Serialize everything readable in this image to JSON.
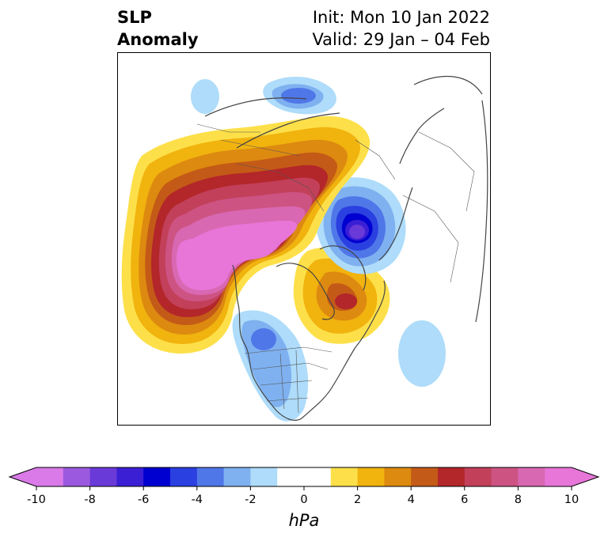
{
  "title": {
    "variable_line1": "SLP",
    "variable_line2": "Anomaly",
    "init_text": "Init: Mon 10 Jan 2022",
    "valid_text": "Valid: 29 Jan – 04 Feb"
  },
  "colorbar": {
    "unit": "hPa",
    "ticks": [
      "-10",
      "-8",
      "-6",
      "-4",
      "-2",
      "0",
      "2",
      "4",
      "6",
      "8",
      "10"
    ],
    "colors": [
      "#d97ae8",
      "#9b59e0",
      "#6a3ad8",
      "#3b1fd4",
      "#0000d0",
      "#2a40e0",
      "#5077e8",
      "#7fb1f0",
      "#aedcfa",
      "#ffffff",
      "#ffffff",
      "#fde049",
      "#f1b30e",
      "#dd8a10",
      "#c45a17",
      "#b3262a",
      "#c2405a",
      "#cd5383",
      "#d968b2",
      "#e776d8"
    ],
    "extend": "both"
  },
  "map": {
    "projection": "north polar stereographic",
    "anomalies": [
      {
        "region": "North Pacific / Alaska",
        "sign": "positive",
        "peak_hPa": 10
      },
      {
        "region": "Arctic Ocean / Siberia",
        "sign": "positive",
        "peak_hPa": 10
      },
      {
        "region": "Scandinavia / North Atlantic",
        "sign": "negative",
        "peak_hPa": -8
      },
      {
        "region": "Greenland",
        "sign": "positive",
        "peak_hPa": 6
      },
      {
        "region": "Western North America",
        "sign": "negative",
        "peak_hPa": -4
      },
      {
        "region": "Central Asia",
        "sign": "negative",
        "peak_hPa": -4
      },
      {
        "region": "Central Atlantic",
        "sign": "negative",
        "peak_hPa": -2
      }
    ]
  }
}
